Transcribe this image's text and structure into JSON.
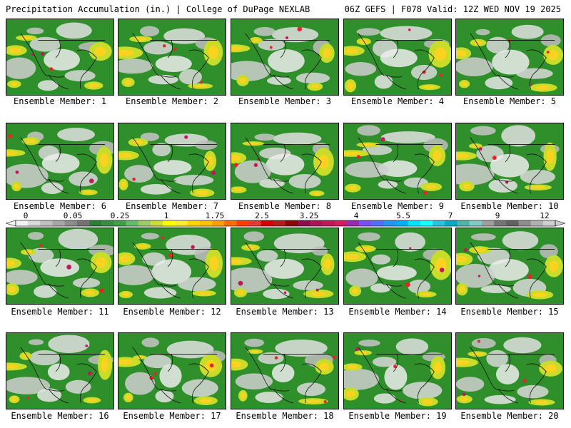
{
  "header": {
    "left": "Precipitation Accumulation (in.) | College of DuPage NEXLAB",
    "right": "06Z GEFS | F078 Valid: 12Z WED NOV 19 2025"
  },
  "panels": [
    {
      "label": "Ensemble Member: 1"
    },
    {
      "label": "Ensemble Member: 2"
    },
    {
      "label": "Ensemble Member: 3"
    },
    {
      "label": "Ensemble Member: 4"
    },
    {
      "label": "Ensemble Member: 5"
    },
    {
      "label": "Ensemble Member: 6"
    },
    {
      "label": "Ensemble Member: 7"
    },
    {
      "label": "Ensemble Member: 8"
    },
    {
      "label": "Ensemble Member: 9"
    },
    {
      "label": "Ensemble Member: 10"
    },
    {
      "label": "Ensemble Member: 11"
    },
    {
      "label": "Ensemble Member: 12"
    },
    {
      "label": "Ensemble Member: 13"
    },
    {
      "label": "Ensemble Member: 14"
    },
    {
      "label": "Ensemble Member: 15"
    },
    {
      "label": "Ensemble Member: 16"
    },
    {
      "label": "Ensemble Member: 17"
    },
    {
      "label": "Ensemble Member: 18"
    },
    {
      "label": "Ensemble Member: 19"
    },
    {
      "label": "Ensemble Member: 20"
    }
  ],
  "colorbar": {
    "labels": [
      "0",
      "0.05",
      "0.25",
      "1",
      "1.75",
      "2.5",
      "3.25",
      "4",
      "5.5",
      "7",
      "9",
      "12"
    ],
    "colors": [
      "#f2f2f2",
      "#d9d9d9",
      "#bfbfbf",
      "#a6a6a6",
      "#8c8c8c",
      "#737373",
      "#2e7d32",
      "#388e3c",
      "#43a047",
      "#66bb6a",
      "#9ccc65",
      "#cddc39",
      "#ffff00",
      "#ffeb3b",
      "#ffd600",
      "#ffc107",
      "#ffa000",
      "#ff6f00",
      "#ff3d00",
      "#e53935",
      "#d50000",
      "#b71c1c",
      "#8b0000",
      "#880e4f",
      "#ad1457",
      "#c2185b",
      "#d81b60",
      "#9c27b0",
      "#7c4dff",
      "#536dfe",
      "#2196f3",
      "#00b0ff",
      "#00e5ff",
      "#18ffff",
      "#26c6da",
      "#00acc1",
      "#4db6ac",
      "#80cbc4",
      "#9e9e9e",
      "#757575",
      "#616161",
      "#8d8d8d",
      "#b0b0b0",
      "#cfcfcf"
    ]
  }
}
